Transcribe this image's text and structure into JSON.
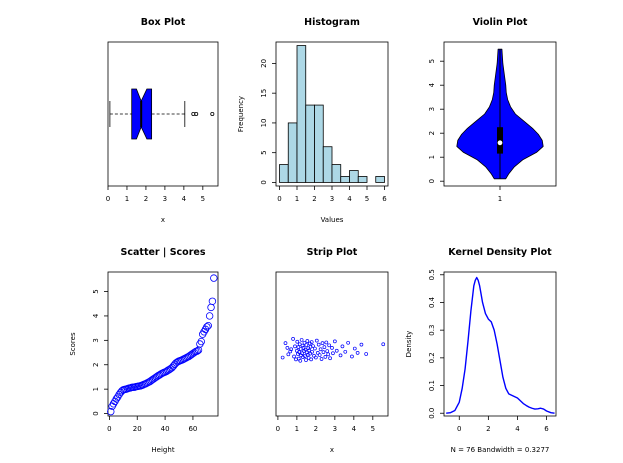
{
  "chart_data": [
    {
      "type": "box",
      "title": "Box Plot",
      "xlabel": "x",
      "xlim": [
        0,
        5.8
      ],
      "xticks": [
        0,
        1,
        2,
        3,
        4,
        5
      ],
      "whisker_low": 0.1,
      "q1": 1.25,
      "median": 1.75,
      "q3": 2.3,
      "notch_low": 1.5,
      "notch_high": 2.05,
      "whisker_high": 4.05,
      "outliers": [
        4.5,
        4.65,
        5.5
      ],
      "color": "#0000ff"
    },
    {
      "type": "histogram",
      "title": "Histogram",
      "xlabel": "Values",
      "ylabel": "Frequency",
      "bin_edges": [
        0,
        0.5,
        1,
        1.5,
        2,
        2.5,
        3,
        3.5,
        4,
        4.5,
        5,
        5.5,
        6
      ],
      "counts": [
        3,
        10,
        23,
        13,
        13,
        6,
        3,
        1,
        2,
        1,
        0,
        1
      ],
      "xticks": [
        0,
        1,
        2,
        3,
        4,
        5,
        6
      ],
      "yticks": [
        0,
        5,
        10,
        15,
        20
      ],
      "ylim": [
        0,
        23
      ],
      "color": "#add8e6"
    },
    {
      "type": "violin",
      "title": "Violin Plot",
      "xticks": [
        "1"
      ],
      "yticks": [
        0,
        1,
        2,
        3,
        4,
        5
      ],
      "ylim": [
        0,
        5.6
      ],
      "median": 1.6,
      "q1": 1.15,
      "q3": 2.25,
      "whisker_low": 0.1,
      "whisker_high": 5.5,
      "density_profile": [
        [
          0.1,
          0.12
        ],
        [
          0.3,
          0.18
        ],
        [
          0.6,
          0.3
        ],
        [
          0.9,
          0.48
        ],
        [
          1.2,
          0.76
        ],
        [
          1.45,
          0.9
        ],
        [
          1.7,
          0.88
        ],
        [
          1.95,
          0.8
        ],
        [
          2.2,
          0.68
        ],
        [
          2.5,
          0.5
        ],
        [
          2.8,
          0.32
        ],
        [
          3.1,
          0.22
        ],
        [
          3.4,
          0.16
        ],
        [
          3.7,
          0.13
        ],
        [
          4.0,
          0.12
        ],
        [
          4.3,
          0.1
        ],
        [
          4.6,
          0.08
        ],
        [
          4.9,
          0.06
        ],
        [
          5.2,
          0.05
        ],
        [
          5.5,
          0.04
        ]
      ],
      "color": "#0000ff"
    },
    {
      "type": "scatter",
      "title": "Scatter | Scores",
      "xlabel": "Height",
      "ylabel": "Scores",
      "xticks": [
        0,
        20,
        40,
        60
      ],
      "yticks": [
        0,
        1,
        2,
        3,
        4,
        5
      ],
      "xlim": [
        -1,
        78
      ],
      "ylim": [
        -0.1,
        5.8
      ],
      "points": [
        [
          1,
          0.08
        ],
        [
          2,
          0.3
        ],
        [
          3,
          0.4
        ],
        [
          4,
          0.5
        ],
        [
          5,
          0.6
        ],
        [
          6,
          0.68
        ],
        [
          7,
          0.78
        ],
        [
          8,
          0.86
        ],
        [
          9,
          0.93
        ],
        [
          10,
          0.97
        ],
        [
          11,
          0.99
        ],
        [
          12,
          1.0
        ],
        [
          13,
          1.02
        ],
        [
          14,
          1.04
        ],
        [
          15,
          1.05
        ],
        [
          16,
          1.07
        ],
        [
          17,
          1.08
        ],
        [
          18,
          1.08
        ],
        [
          19,
          1.1
        ],
        [
          20,
          1.11
        ],
        [
          21,
          1.12
        ],
        [
          22,
          1.13
        ],
        [
          23,
          1.15
        ],
        [
          24,
          1.17
        ],
        [
          25,
          1.2
        ],
        [
          26,
          1.22
        ],
        [
          27,
          1.25
        ],
        [
          28,
          1.28
        ],
        [
          29,
          1.31
        ],
        [
          30,
          1.35
        ],
        [
          31,
          1.39
        ],
        [
          32,
          1.43
        ],
        [
          33,
          1.47
        ],
        [
          34,
          1.51
        ],
        [
          35,
          1.55
        ],
        [
          36,
          1.58
        ],
        [
          37,
          1.62
        ],
        [
          38,
          1.65
        ],
        [
          39,
          1.68
        ],
        [
          40,
          1.7
        ],
        [
          41,
          1.73
        ],
        [
          42,
          1.77
        ],
        [
          43,
          1.8
        ],
        [
          44,
          1.84
        ],
        [
          45,
          1.88
        ],
        [
          46,
          1.95
        ],
        [
          47,
          2.02
        ],
        [
          48,
          2.08
        ],
        [
          49,
          2.12
        ],
        [
          50,
          2.15
        ],
        [
          51,
          2.17
        ],
        [
          52,
          2.19
        ],
        [
          53,
          2.22
        ],
        [
          54,
          2.25
        ],
        [
          55,
          2.28
        ],
        [
          56,
          2.31
        ],
        [
          57,
          2.34
        ],
        [
          58,
          2.38
        ],
        [
          59,
          2.42
        ],
        [
          60,
          2.46
        ],
        [
          61,
          2.5
        ],
        [
          62,
          2.54
        ],
        [
          63,
          2.56
        ],
        [
          64,
          2.6
        ],
        [
          65,
          2.85
        ],
        [
          66,
          2.95
        ],
        [
          67,
          3.25
        ],
        [
          68,
          3.35
        ],
        [
          69,
          3.45
        ],
        [
          70,
          3.55
        ],
        [
          71,
          3.6
        ],
        [
          72,
          4.0
        ],
        [
          73,
          4.35
        ],
        [
          74,
          4.6
        ],
        [
          75,
          5.55
        ]
      ],
      "color": "#0000ff"
    },
    {
      "type": "strip",
      "title": "Strip Plot",
      "xlabel": "x",
      "xticks": [
        0,
        1,
        2,
        3,
        4,
        5
      ],
      "xlim": [
        -0.1,
        5.8
      ],
      "points": [
        [
          0.25,
          2.1
        ],
        [
          0.4,
          -1.9
        ],
        [
          0.5,
          -0.6
        ],
        [
          0.55,
          1.2
        ],
        [
          0.65,
          0.4
        ],
        [
          0.7,
          -0.2
        ],
        [
          0.8,
          -3.1
        ],
        [
          0.85,
          1.8
        ],
        [
          0.9,
          -1.0
        ],
        [
          0.95,
          2.6
        ],
        [
          1.0,
          0.2
        ],
        [
          1.02,
          -2.3
        ],
        [
          1.05,
          1.1
        ],
        [
          1.08,
          -0.8
        ],
        [
          1.1,
          2.4
        ],
        [
          1.12,
          0.6
        ],
        [
          1.15,
          -1.6
        ],
        [
          1.18,
          3.0
        ],
        [
          1.2,
          -0.3
        ],
        [
          1.22,
          1.5
        ],
        [
          1.25,
          -2.8
        ],
        [
          1.28,
          0.9
        ],
        [
          1.3,
          -1.2
        ],
        [
          1.32,
          2.0
        ],
        [
          1.35,
          -0.6
        ],
        [
          1.38,
          0.3
        ],
        [
          1.4,
          -2.0
        ],
        [
          1.42,
          1.7
        ],
        [
          1.45,
          -0.1
        ],
        [
          1.48,
          2.8
        ],
        [
          1.5,
          -1.4
        ],
        [
          1.52,
          0.7
        ],
        [
          1.55,
          -2.5
        ],
        [
          1.58,
          1.3
        ],
        [
          1.6,
          -0.5
        ],
        [
          1.62,
          2.2
        ],
        [
          1.65,
          0.1
        ],
        [
          1.68,
          -1.8
        ],
        [
          1.7,
          1.0
        ],
        [
          1.72,
          -0.9
        ],
        [
          1.75,
          2.6
        ],
        [
          1.78,
          -2.2
        ],
        [
          1.8,
          0.5
        ],
        [
          1.85,
          -1.1
        ],
        [
          1.9,
          1.6
        ],
        [
          1.95,
          -0.4
        ],
        [
          2.0,
          2.1
        ],
        [
          2.05,
          -2.6
        ],
        [
          2.1,
          0.8
        ],
        [
          2.15,
          -1.5
        ],
        [
          2.2,
          1.4
        ],
        [
          2.25,
          -0.2
        ],
        [
          2.3,
          2.5
        ],
        [
          2.35,
          -1.9
        ],
        [
          2.4,
          0.6
        ],
        [
          2.45,
          -0.8
        ],
        [
          2.5,
          1.9
        ],
        [
          2.55,
          -2.1
        ],
        [
          2.6,
          0.3
        ],
        [
          2.65,
          1.2
        ],
        [
          2.7,
          -1.3
        ],
        [
          2.75,
          2.3
        ],
        [
          2.85,
          -0.6
        ],
        [
          2.9,
          0.9
        ],
        [
          3.0,
          -2.4
        ],
        [
          3.1,
          0.2
        ],
        [
          3.3,
          1.5
        ],
        [
          3.4,
          -1.0
        ],
        [
          3.55,
          0.5
        ],
        [
          3.7,
          -2.0
        ],
        [
          3.9,
          1.8
        ],
        [
          4.05,
          -0.4
        ],
        [
          4.2,
          0.8
        ],
        [
          4.4,
          -1.5
        ],
        [
          4.65,
          1.1
        ],
        [
          5.55,
          -1.6
        ]
      ],
      "color": "#0000ff"
    },
    {
      "type": "line",
      "title": "Kernel Density Plot",
      "xlabel": "N = 76   Bandwidth = 0.3277",
      "ylabel": "Density",
      "xticks": [
        0,
        2,
        4,
        6
      ],
      "yticks": [
        0.0,
        0.1,
        0.2,
        0.3,
        0.4,
        0.5
      ],
      "xlim": [
        -1.05,
        6.65
      ],
      "ylim": [
        -0.01,
        0.51
      ],
      "x": [
        -0.9,
        -0.6,
        -0.3,
        0.0,
        0.2,
        0.4,
        0.6,
        0.8,
        1.0,
        1.1,
        1.2,
        1.3,
        1.4,
        1.5,
        1.6,
        1.8,
        2.0,
        2.2,
        2.4,
        2.6,
        2.8,
        3.0,
        3.2,
        3.4,
        3.6,
        3.8,
        4.0,
        4.2,
        4.4,
        4.6,
        4.8,
        5.0,
        5.2,
        5.4,
        5.6,
        5.8,
        6.0,
        6.3,
        6.55
      ],
      "y": [
        0.0,
        0.002,
        0.01,
        0.04,
        0.09,
        0.16,
        0.26,
        0.37,
        0.46,
        0.48,
        0.49,
        0.48,
        0.46,
        0.43,
        0.4,
        0.36,
        0.34,
        0.33,
        0.3,
        0.25,
        0.19,
        0.13,
        0.09,
        0.07,
        0.065,
        0.06,
        0.055,
        0.045,
        0.035,
        0.028,
        0.022,
        0.018,
        0.015,
        0.016,
        0.018,
        0.015,
        0.008,
        0.002,
        0.0
      ],
      "color": "#0000ff"
    }
  ]
}
